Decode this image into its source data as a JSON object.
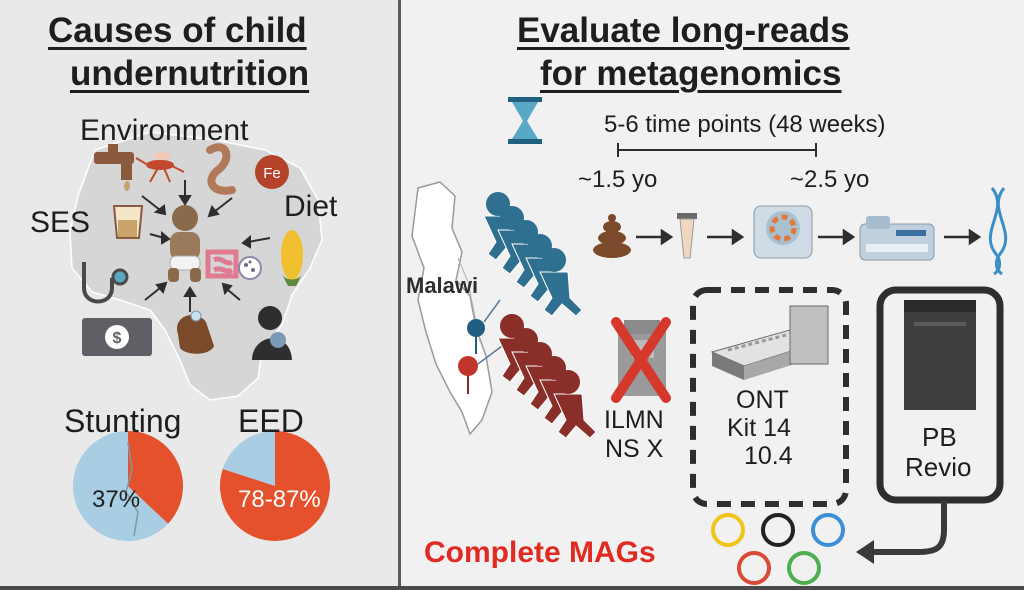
{
  "left_panel": {
    "title_line1": "Causes of child",
    "title_line2": "undernutrition",
    "factors": {
      "environment": "Environment",
      "ses": "SES",
      "diet": "Diet",
      "iron": "Fe"
    },
    "stunting": {
      "label": "Stunting",
      "value": "37%"
    },
    "eed": {
      "label": "EED",
      "value": "78-87%"
    }
  },
  "right_panel": {
    "title_line1": "Evaluate long-reads",
    "title_line2": "for metagenomics",
    "timeline": {
      "label": "5-6 time points (48 weeks)",
      "start": "~1.5 yo",
      "end": "~2.5 yo"
    },
    "location": "Malawi",
    "ilmn": {
      "line1": "ILMN",
      "line2": "NS X"
    },
    "ont": {
      "line1": "ONT",
      "line2": "Kit 14",
      "line3": "10.4"
    },
    "pb": {
      "line1": "PB",
      "line2": "Revio"
    },
    "result": "Complete MAGs"
  },
  "colors": {
    "pie_orange": "#e4512c",
    "pie_blue": "#a9cde2",
    "blue_children": "#2f6f8f",
    "red_children": "#8a2e2a",
    "result_red": "#e02a22",
    "ring_colors": [
      "#f0c419",
      "#222222",
      "#3b8fd6",
      "#d84a3a",
      "#4caf50"
    ]
  }
}
